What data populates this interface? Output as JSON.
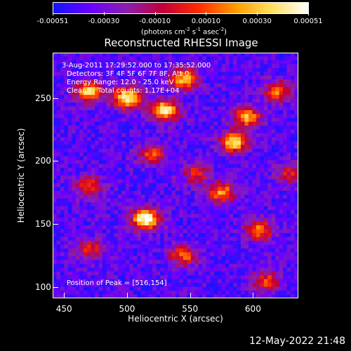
{
  "colorbar": {
    "ticks": [
      "-0.00051",
      "-0.00030",
      "-0.00010",
      "0.00010",
      "0.00030",
      "0.00051"
    ],
    "units_html": "(photons cm<sup>-2</sup> s<sup>-1</sup> asec<sup>-2</sup>)",
    "colors": [
      "#1414ff",
      "#6a00ff",
      "#8a1fb0",
      "#c2003a",
      "#ff2b00",
      "#ff9a00",
      "#ffe060",
      "#ffffff"
    ]
  },
  "title": "Reconstructed RHESSI Image",
  "info": {
    "time": "3-Aug-2011 17:29:52.000 to 17:35:52.000",
    "detectors": "Detectors: 3F 4F 5F 6F 7F 8F, Att 0",
    "energy": "Energy Range: 12.0 - 25.0 keV",
    "clean": "Clean     Total counts: 1.17E+04",
    "peak": "Position of Peak = [516,154]"
  },
  "chart_data": {
    "type": "heatmap",
    "title": "Reconstructed RHESSI Image",
    "xlabel": "Heliocentric X (arcsec)",
    "ylabel": "Heliocentric Y (arcsec)",
    "x_ticks": [
      "450",
      "500",
      "550",
      "600"
    ],
    "y_ticks": [
      "100",
      "150",
      "200",
      "250"
    ],
    "xlim": [
      441,
      636
    ],
    "ylim": [
      91,
      286
    ],
    "hotspots": [
      {
        "x": 515,
        "y": 154,
        "intensity": 1.0
      },
      {
        "x": 500,
        "y": 250,
        "intensity": 0.95
      },
      {
        "x": 530,
        "y": 240,
        "intensity": 0.9
      },
      {
        "x": 585,
        "y": 215,
        "intensity": 0.85
      },
      {
        "x": 470,
        "y": 255,
        "intensity": 0.8
      },
      {
        "x": 545,
        "y": 265,
        "intensity": 0.75
      },
      {
        "x": 595,
        "y": 235,
        "intensity": 0.7
      },
      {
        "x": 575,
        "y": 175,
        "intensity": 0.65
      },
      {
        "x": 620,
        "y": 255,
        "intensity": 0.6
      },
      {
        "x": 605,
        "y": 145,
        "intensity": 0.65
      },
      {
        "x": 545,
        "y": 125,
        "intensity": 0.55
      },
      {
        "x": 610,
        "y": 105,
        "intensity": 0.5
      },
      {
        "x": 470,
        "y": 180,
        "intensity": 0.45
      },
      {
        "x": 470,
        "y": 130,
        "intensity": 0.45
      },
      {
        "x": 520,
        "y": 205,
        "intensity": 0.5
      },
      {
        "x": 555,
        "y": 190,
        "intensity": 0.45
      },
      {
        "x": 630,
        "y": 190,
        "intensity": 0.4
      }
    ],
    "grid": false,
    "colorbar_range": [
      -0.00051,
      0.00051
    ]
  },
  "timestamp": "12-May-2022 21:48"
}
